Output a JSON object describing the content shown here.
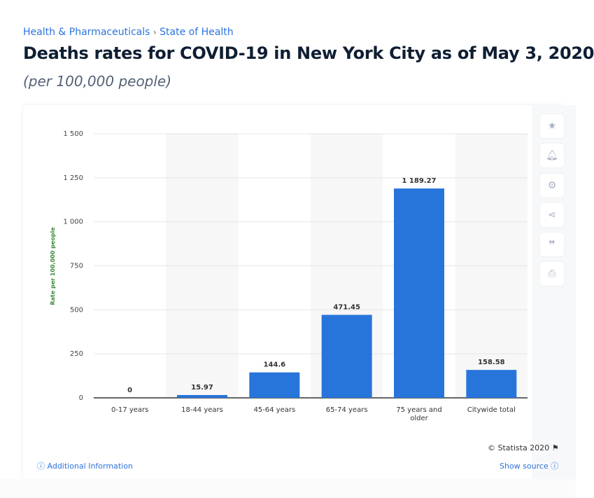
{
  "breadcrumb": {
    "items": [
      "Health & Pharmaceuticals",
      "State of Health"
    ],
    "separator": "›"
  },
  "header": {
    "title": "Deaths rates for COVID-19 in New York City as of May 3, 2020",
    "subtitle": "(per 100,000 people)"
  },
  "toolbar": {
    "icons": [
      "star-icon",
      "bell-icon",
      "gear-icon",
      "share-icon",
      "quote-icon",
      "print-icon"
    ]
  },
  "footer": {
    "copyright": "© Statista 2020",
    "additional_info": "Additional Information",
    "show_source": "Show source"
  },
  "colors": {
    "bar": "#2775db",
    "link": "#2c74dd",
    "band": "#f7f7f7",
    "ylabel": "#3a8a3a"
  },
  "chart_data": {
    "type": "bar",
    "categories": [
      "0-17 years",
      "18-44 years",
      "45-64 years",
      "65-74 years",
      "75 years and older",
      "Citywide total"
    ],
    "values": [
      0,
      15.97,
      144.6,
      471.45,
      1189.27,
      158.58
    ],
    "value_labels": [
      "0",
      "15.97",
      "144.6",
      "471.45",
      "1 189.27",
      "158.58"
    ],
    "ylabel": "Rate per 100,000 people",
    "ylim": [
      0,
      1500
    ],
    "yticks": [
      0,
      250,
      500,
      750,
      1000,
      1250,
      1500
    ],
    "ytick_labels": [
      "0",
      "250",
      "500",
      "750",
      "1 000",
      "1 250",
      "1 500"
    ],
    "grid": true
  }
}
